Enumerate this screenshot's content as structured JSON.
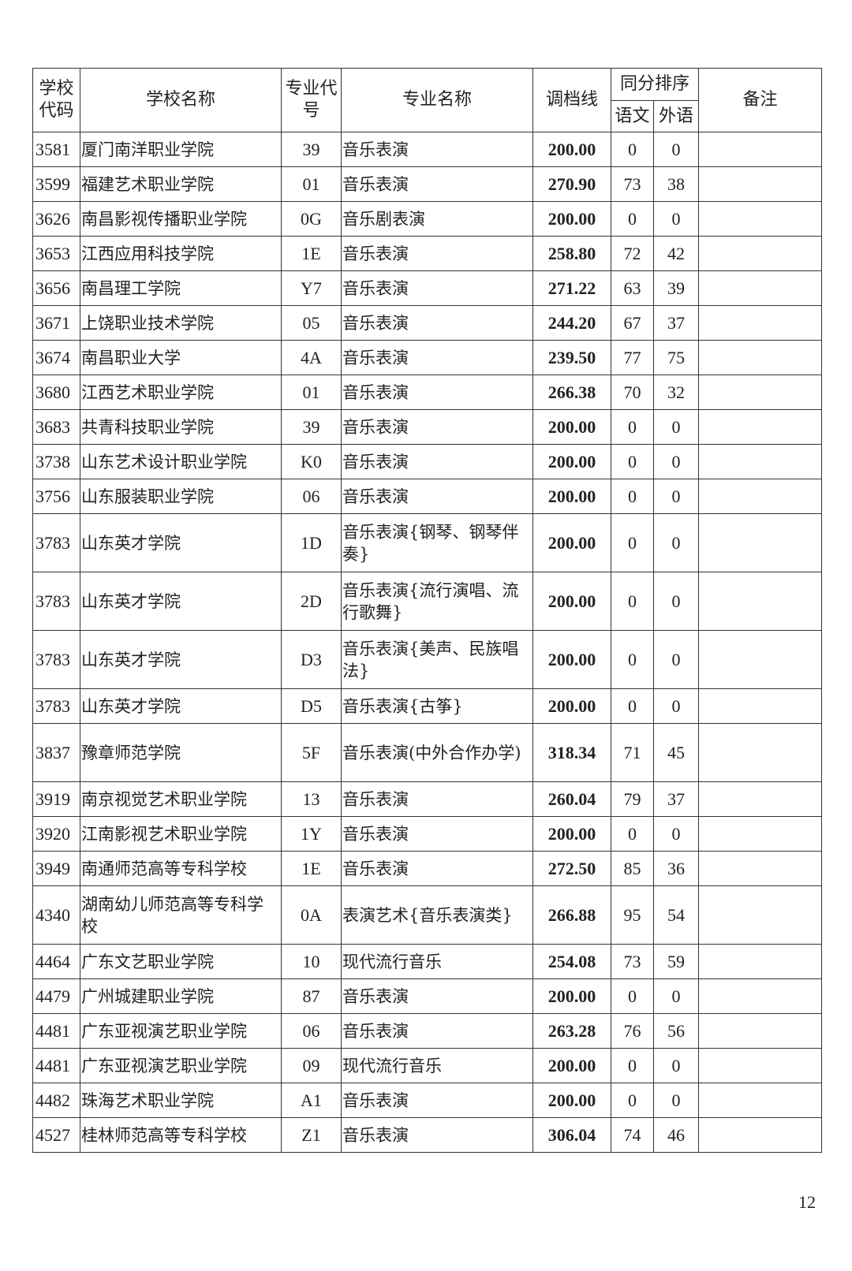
{
  "header": {
    "school_code": "学校代码",
    "school_name": "学校名称",
    "major_code": "专业代号",
    "major_name": "专业名称",
    "line": "调档线",
    "tie_order": "同分排序",
    "chinese": "语文",
    "foreign": "外语",
    "remark": "备注"
  },
  "rows": [
    {
      "code": "3581",
      "school": "厦门南洋职业学院",
      "mcode": "39",
      "major": "音乐表演",
      "line": "200.00",
      "cn": "0",
      "fl": "0",
      "tall": false
    },
    {
      "code": "3599",
      "school": "福建艺术职业学院",
      "mcode": "01",
      "major": "音乐表演",
      "line": "270.90",
      "cn": "73",
      "fl": "38",
      "tall": false
    },
    {
      "code": "3626",
      "school": "南昌影视传播职业学院",
      "mcode": "0G",
      "major": "音乐剧表演",
      "line": "200.00",
      "cn": "0",
      "fl": "0",
      "tall": false
    },
    {
      "code": "3653",
      "school": "江西应用科技学院",
      "mcode": "1E",
      "major": "音乐表演",
      "line": "258.80",
      "cn": "72",
      "fl": "42",
      "tall": false
    },
    {
      "code": "3656",
      "school": "南昌理工学院",
      "mcode": "Y7",
      "major": "音乐表演",
      "line": "271.22",
      "cn": "63",
      "fl": "39",
      "tall": false
    },
    {
      "code": "3671",
      "school": "上饶职业技术学院",
      "mcode": "05",
      "major": "音乐表演",
      "line": "244.20",
      "cn": "67",
      "fl": "37",
      "tall": false
    },
    {
      "code": "3674",
      "school": "南昌职业大学",
      "mcode": "4A",
      "major": "音乐表演",
      "line": "239.50",
      "cn": "77",
      "fl": "75",
      "tall": false
    },
    {
      "code": "3680",
      "school": "江西艺术职业学院",
      "mcode": "01",
      "major": "音乐表演",
      "line": "266.38",
      "cn": "70",
      "fl": "32",
      "tall": false
    },
    {
      "code": "3683",
      "school": "共青科技职业学院",
      "mcode": "39",
      "major": "音乐表演",
      "line": "200.00",
      "cn": "0",
      "fl": "0",
      "tall": false
    },
    {
      "code": "3738",
      "school": "山东艺术设计职业学院",
      "mcode": "K0",
      "major": "音乐表演",
      "line": "200.00",
      "cn": "0",
      "fl": "0",
      "tall": false
    },
    {
      "code": "3756",
      "school": "山东服装职业学院",
      "mcode": "06",
      "major": "音乐表演",
      "line": "200.00",
      "cn": "0",
      "fl": "0",
      "tall": false
    },
    {
      "code": "3783",
      "school": "山东英才学院",
      "mcode": "1D",
      "major": "音乐表演{钢琴、钢琴伴奏}",
      "line": "200.00",
      "cn": "0",
      "fl": "0",
      "tall": true
    },
    {
      "code": "3783",
      "school": "山东英才学院",
      "mcode": "2D",
      "major": "音乐表演{流行演唱、流行歌舞}",
      "line": "200.00",
      "cn": "0",
      "fl": "0",
      "tall": true
    },
    {
      "code": "3783",
      "school": "山东英才学院",
      "mcode": "D3",
      "major": "音乐表演{美声、民族唱法}",
      "line": "200.00",
      "cn": "0",
      "fl": "0",
      "tall": true
    },
    {
      "code": "3783",
      "school": "山东英才学院",
      "mcode": "D5",
      "major": "音乐表演{古筝}",
      "line": "200.00",
      "cn": "0",
      "fl": "0",
      "tall": false
    },
    {
      "code": "3837",
      "school": "豫章师范学院",
      "mcode": "5F",
      "major": "音乐表演(中外合作办学)",
      "line": "318.34",
      "cn": "71",
      "fl": "45",
      "tall": true
    },
    {
      "code": "3919",
      "school": "南京视觉艺术职业学院",
      "mcode": "13",
      "major": "音乐表演",
      "line": "260.04",
      "cn": "79",
      "fl": "37",
      "tall": false
    },
    {
      "code": "3920",
      "school": "江南影视艺术职业学院",
      "mcode": "1Y",
      "major": "音乐表演",
      "line": "200.00",
      "cn": "0",
      "fl": "0",
      "tall": false
    },
    {
      "code": "3949",
      "school": "南通师范高等专科学校",
      "mcode": "1E",
      "major": "音乐表演",
      "line": "272.50",
      "cn": "85",
      "fl": "36",
      "tall": false
    },
    {
      "code": "4340",
      "school": "湖南幼儿师范高等专科学校",
      "mcode": "0A",
      "major": "表演艺术{音乐表演类}",
      "line": "266.88",
      "cn": "95",
      "fl": "54",
      "tall": true
    },
    {
      "code": "4464",
      "school": "广东文艺职业学院",
      "mcode": "10",
      "major": "现代流行音乐",
      "line": "254.08",
      "cn": "73",
      "fl": "59",
      "tall": false
    },
    {
      "code": "4479",
      "school": "广州城建职业学院",
      "mcode": "87",
      "major": "音乐表演",
      "line": "200.00",
      "cn": "0",
      "fl": "0",
      "tall": false
    },
    {
      "code": "4481",
      "school": "广东亚视演艺职业学院",
      "mcode": "06",
      "major": "音乐表演",
      "line": "263.28",
      "cn": "76",
      "fl": "56",
      "tall": false
    },
    {
      "code": "4481",
      "school": "广东亚视演艺职业学院",
      "mcode": "09",
      "major": "现代流行音乐",
      "line": "200.00",
      "cn": "0",
      "fl": "0",
      "tall": false
    },
    {
      "code": "4482",
      "school": "珠海艺术职业学院",
      "mcode": "A1",
      "major": "音乐表演",
      "line": "200.00",
      "cn": "0",
      "fl": "0",
      "tall": false
    },
    {
      "code": "4527",
      "school": "桂林师范高等专科学校",
      "mcode": "Z1",
      "major": "音乐表演",
      "line": "306.04",
      "cn": "74",
      "fl": "46",
      "tall": false
    }
  ],
  "page_number": "12"
}
